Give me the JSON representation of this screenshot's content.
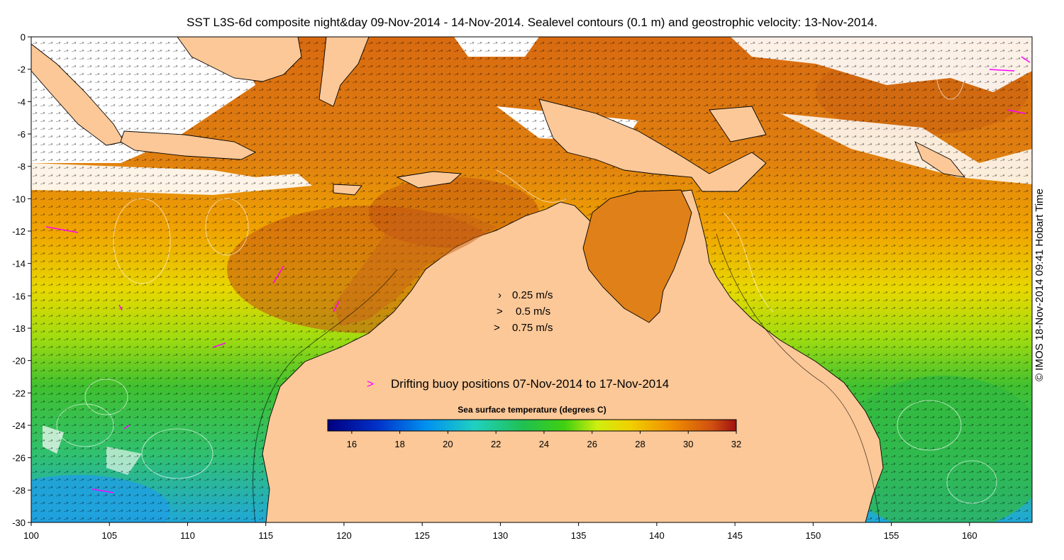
{
  "title": "SST L3S-6d composite night&day 09-Nov-2014 - 14-Nov-2014. Sealevel contours (0.1 m) and geostrophic velocity: 13-Nov-2014.",
  "copyright": "© IMOS 18-Nov-2014 09:41 Hobart Time",
  "axes": {
    "x_ticks": [
      "100",
      "105",
      "110",
      "115",
      "120",
      "125",
      "130",
      "135",
      "140",
      "145",
      "150",
      "155",
      "160"
    ],
    "y_ticks": [
      "0",
      "-2",
      "-4",
      "-6",
      "-8",
      "-10",
      "-12",
      "-14",
      "-16",
      "-18",
      "-20",
      "-22",
      "-24",
      "-26",
      "-28",
      "-30"
    ],
    "xlim": [
      100,
      164
    ],
    "ylim": [
      -30,
      0
    ]
  },
  "velocity_legend": {
    "entries": [
      {
        "symbol": "›",
        "label": "0.25 m/s"
      },
      {
        "symbol": ">",
        "label": "0.5 m/s"
      },
      {
        "symbol": ">",
        "label": "0.75 m/s"
      }
    ]
  },
  "buoy_legend": {
    "symbol": ">",
    "label": "Drifting buoy positions 07-Nov-2014 to 17-Nov-2014",
    "color": "#ff00ff"
  },
  "colorbar": {
    "title": "Sea surface temperature (degrees C)",
    "ticks": [
      "16",
      "18",
      "20",
      "22",
      "24",
      "26",
      "28",
      "30",
      "32"
    ],
    "range": [
      15,
      32
    ]
  },
  "colors": {
    "land": "#fcc898",
    "cloud": "#ffffff",
    "warm": "#e07810",
    "hot": "#c05810",
    "mid": "#f0b000",
    "yellow": "#e8e800",
    "green": "#50c020",
    "cyan": "#20b0d0"
  }
}
